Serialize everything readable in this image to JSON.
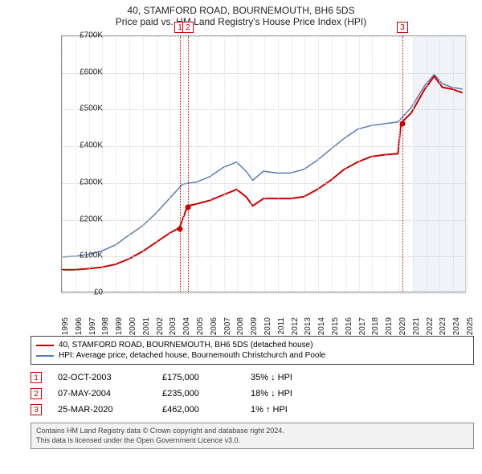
{
  "title": {
    "line1": "40, STAMFORD ROAD, BOURNEMOUTH, BH6 5DS",
    "line2": "Price paid vs. HM Land Registry's House Price Index (HPI)"
  },
  "chart": {
    "type": "line",
    "background_color": "#ffffff",
    "grid_color": "#cccccc",
    "font_size_tick": 10,
    "ylim": [
      0,
      700000
    ],
    "ytick_step": 100000,
    "yticks": [
      "£0",
      "£100K",
      "£200K",
      "£300K",
      "£400K",
      "£500K",
      "£600K",
      "£700K"
    ],
    "x_start_year": 1995,
    "x_end_year": 2025,
    "xticks": [
      "1995",
      "1996",
      "1997",
      "1998",
      "1999",
      "2000",
      "2001",
      "2002",
      "2003",
      "2004",
      "2005",
      "2006",
      "2007",
      "2008",
      "2009",
      "2010",
      "2011",
      "2012",
      "2013",
      "2014",
      "2015",
      "2016",
      "2017",
      "2018",
      "2019",
      "2020",
      "2021",
      "2022",
      "2023",
      "2024",
      "2025"
    ],
    "future_shade": {
      "from_year": 2021,
      "color": "#e6ecf5"
    },
    "series": {
      "property": {
        "color": "#cc0000",
        "line_width": 2,
        "points": [
          [
            1995.0,
            60000
          ],
          [
            1996.0,
            60000
          ],
          [
            1997.0,
            63000
          ],
          [
            1998.0,
            67000
          ],
          [
            1999.0,
            75000
          ],
          [
            2000.0,
            90000
          ],
          [
            2001.0,
            110000
          ],
          [
            2002.0,
            135000
          ],
          [
            2003.0,
            160000
          ],
          [
            2003.75,
            175000
          ],
          [
            2004.35,
            235000
          ],
          [
            2005.0,
            240000
          ],
          [
            2006.0,
            250000
          ],
          [
            2007.0,
            265000
          ],
          [
            2008.0,
            280000
          ],
          [
            2008.7,
            260000
          ],
          [
            2009.2,
            235000
          ],
          [
            2010.0,
            255000
          ],
          [
            2011.0,
            255000
          ],
          [
            2012.0,
            255000
          ],
          [
            2013.0,
            260000
          ],
          [
            2014.0,
            280000
          ],
          [
            2015.0,
            305000
          ],
          [
            2016.0,
            335000
          ],
          [
            2017.0,
            355000
          ],
          [
            2018.0,
            370000
          ],
          [
            2019.0,
            375000
          ],
          [
            2020.0,
            378000
          ],
          [
            2020.23,
            462000
          ],
          [
            2021.0,
            490000
          ],
          [
            2022.0,
            555000
          ],
          [
            2022.7,
            590000
          ],
          [
            2023.3,
            560000
          ],
          [
            2024.0,
            555000
          ],
          [
            2024.8,
            545000
          ]
        ]
      },
      "hpi": {
        "color": "#5a7bb5",
        "line_width": 1.5,
        "points": [
          [
            1995.0,
            95000
          ],
          [
            1996.0,
            97000
          ],
          [
            1997.0,
            102000
          ],
          [
            1998.0,
            112000
          ],
          [
            1999.0,
            128000
          ],
          [
            2000.0,
            155000
          ],
          [
            2001.0,
            180000
          ],
          [
            2002.0,
            215000
          ],
          [
            2003.0,
            255000
          ],
          [
            2004.0,
            295000
          ],
          [
            2005.0,
            300000
          ],
          [
            2006.0,
            315000
          ],
          [
            2007.0,
            340000
          ],
          [
            2008.0,
            355000
          ],
          [
            2008.7,
            330000
          ],
          [
            2009.2,
            305000
          ],
          [
            2010.0,
            330000
          ],
          [
            2011.0,
            325000
          ],
          [
            2012.0,
            325000
          ],
          [
            2013.0,
            335000
          ],
          [
            2014.0,
            360000
          ],
          [
            2015.0,
            390000
          ],
          [
            2016.0,
            420000
          ],
          [
            2017.0,
            445000
          ],
          [
            2018.0,
            455000
          ],
          [
            2019.0,
            460000
          ],
          [
            2020.0,
            465000
          ],
          [
            2021.0,
            505000
          ],
          [
            2022.0,
            565000
          ],
          [
            2022.7,
            595000
          ],
          [
            2023.3,
            570000
          ],
          [
            2024.0,
            560000
          ],
          [
            2024.8,
            555000
          ]
        ]
      }
    },
    "sale_markers": [
      {
        "year": 2003.75,
        "value": 175000,
        "color": "#cc0000"
      },
      {
        "year": 2004.35,
        "value": 235000,
        "color": "#cc0000"
      },
      {
        "year": 2020.23,
        "value": 462000,
        "color": "#cc0000"
      }
    ],
    "event_lines": [
      {
        "num": "1",
        "year": 2003.75,
        "color": "#cc0000"
      },
      {
        "num": "2",
        "year": 2004.35,
        "color": "#cc0000"
      },
      {
        "num": "3",
        "year": 2020.23,
        "color": "#cc0000"
      }
    ]
  },
  "legend": {
    "series1": {
      "label": "40, STAMFORD ROAD, BOURNEMOUTH, BH6 5DS (detached house)",
      "color": "#cc0000"
    },
    "series2": {
      "label": "HPI: Average price, detached house, Bournemouth Christchurch and Poole",
      "color": "#5a7bb5"
    }
  },
  "events": [
    {
      "num": "1",
      "date": "02-OCT-2003",
      "price": "£175,000",
      "delta": "35% ↓ HPI"
    },
    {
      "num": "2",
      "date": "07-MAY-2004",
      "price": "£235,000",
      "delta": "18% ↓ HPI"
    },
    {
      "num": "3",
      "date": "25-MAR-2020",
      "price": "£462,000",
      "delta": "1% ↑ HPI"
    }
  ],
  "footnote": {
    "line1": "Contains HM Land Registry data © Crown copyright and database right 2024.",
    "line2": "This data is licensed under the Open Government Licence v3.0."
  }
}
